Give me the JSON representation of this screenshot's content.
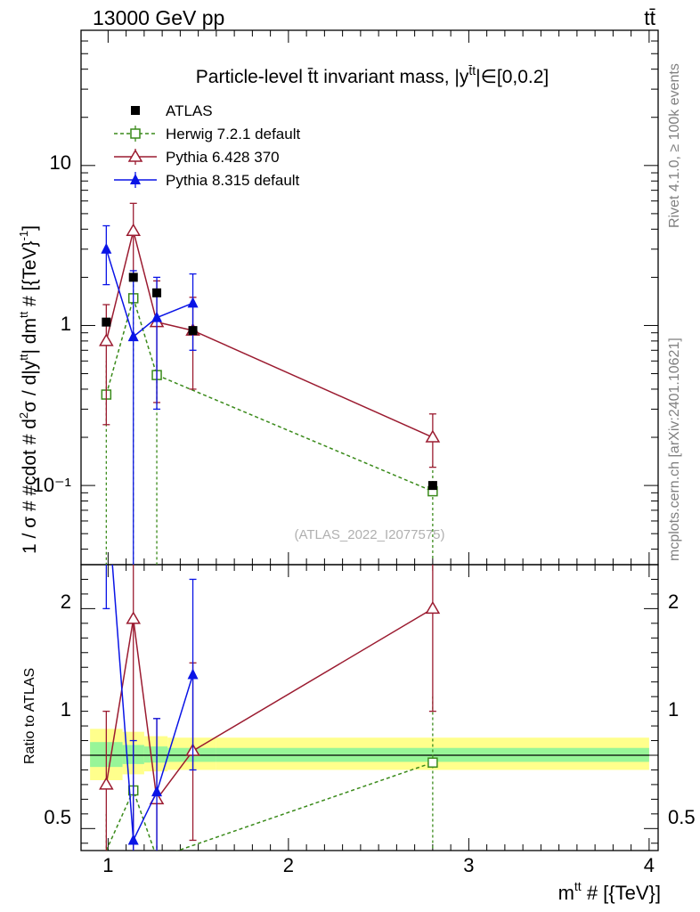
{
  "header": {
    "left": "13000 GeV pp",
    "right": "tt̄"
  },
  "side_labels": {
    "rivet": "Rivet 4.1.0, ≥ 100k events",
    "mcplots": "mcplots.cern.ch [arXiv:2401.10621]"
  },
  "chart_data": [
    {
      "type": "line",
      "panel": "main",
      "title": "Particle-level t̄t invariant mass, |y^tt|∈[0,0.2]",
      "title_main": "Particle-level t̄t invariant mass, |y",
      "title_sup": "t̄t",
      "title_end": "|∈[0,0.2]",
      "ylabel": "1 / σ # #cdot # d²σ / d|y^tt| dm^tt # [{TeV}⁻¹]",
      "ylabel_parts": [
        "1 / σ # #cdot # d",
        "2",
        "σ / d|y",
        "tt",
        "| dm",
        "tt",
        " # [{TeV}",
        "-1",
        "]"
      ],
      "yscale": "log",
      "xlim": [
        0.85,
        4.05
      ],
      "ylim": [
        0.032,
        70
      ],
      "yticks": [
        {
          "value": 10,
          "label": "10"
        },
        {
          "value": 1,
          "label": "1"
        },
        {
          "value": 0.1,
          "label": "10⁻¹"
        }
      ],
      "watermark": "(ATLAS_2022_I2077575)",
      "series": [
        {
          "name": "ATLAS",
          "color": "#000000",
          "marker": "square-filled",
          "dashed": false,
          "connect": false,
          "x": [
            0.99,
            1.14,
            1.27,
            1.47,
            2.8
          ],
          "y": [
            1.05,
            2.0,
            1.6,
            0.93,
            0.1
          ],
          "yerr_lo": [
            1.05,
            2.0,
            1.6,
            0.93,
            0.1
          ],
          "yerr_hi": [
            1.05,
            2.0,
            1.6,
            0.93,
            0.1
          ]
        },
        {
          "name": "Herwig 7.2.1 default",
          "color": "#3a8a1a",
          "marker": "square-open",
          "dashed": true,
          "connect": true,
          "x": [
            0.99,
            1.14,
            1.27,
            2.8
          ],
          "y": [
            0.37,
            1.48,
            0.49,
            0.092
          ],
          "yerr_lo": [
            0.01,
            0.001,
            0.001,
            0.035
          ],
          "yerr_hi": [
            0.6,
            2.2,
            0.6,
            0.14
          ]
        },
        {
          "name": "Pythia 6.428 370",
          "color": "#9b1b30",
          "marker": "triangle-open",
          "dashed": false,
          "connect": true,
          "x": [
            0.99,
            1.14,
            1.27,
            1.47,
            2.8
          ],
          "y": [
            0.8,
            3.9,
            1.05,
            0.93,
            0.2
          ],
          "yerr_lo": [
            0.24,
            2.0,
            0.33,
            0.4,
            0.13
          ],
          "yerr_hi": [
            1.35,
            5.8,
            1.9,
            1.5,
            0.28
          ]
        },
        {
          "name": "Pythia 8.315 default",
          "color": "#0a14e6",
          "marker": "triangle-filled",
          "dashed": false,
          "connect": true,
          "x": [
            0.99,
            1.14,
            1.27,
            1.47
          ],
          "y": [
            3.0,
            0.85,
            1.12,
            1.38
          ],
          "yerr_lo": [
            1.8,
            0.001,
            0.3,
            0.7
          ],
          "yerr_hi": [
            4.2,
            2.2,
            2.0,
            2.1
          ]
        }
      ]
    },
    {
      "type": "line",
      "panel": "ratio",
      "ylabel": "Ratio to ATLAS",
      "xlabel": "m^tt # [{TeV}]",
      "xlabel_parts": [
        "m",
        "tt",
        " # [{TeV}]"
      ],
      "xlim": [
        0.85,
        4.05
      ],
      "ylim": [
        0.35,
        2.3
      ],
      "xticks": [
        {
          "value": 1,
          "label": "1"
        },
        {
          "value": 2,
          "label": "2"
        },
        {
          "value": 3,
          "label": "3"
        },
        {
          "value": 4,
          "label": "4"
        }
      ],
      "yticks": [
        {
          "value": 2,
          "label": "2"
        },
        {
          "value": 1,
          "label": "1"
        },
        {
          "value": 0.5,
          "label": "0.5"
        }
      ],
      "bands": [
        {
          "x0": 0.9,
          "x1": 1.08,
          "yellow": [
            0.83,
            1.18
          ],
          "green": [
            0.92,
            1.09
          ]
        },
        {
          "x0": 1.08,
          "x1": 1.2,
          "yellow": [
            0.87,
            1.16
          ],
          "green": [
            0.94,
            1.07
          ]
        },
        {
          "x0": 1.2,
          "x1": 1.33,
          "yellow": [
            0.89,
            1.13
          ],
          "green": [
            0.95,
            1.06
          ]
        },
        {
          "x0": 1.33,
          "x1": 1.6,
          "yellow": [
            0.9,
            1.12
          ],
          "green": [
            0.955,
            1.05
          ]
        },
        {
          "x0": 1.6,
          "x1": 4.0,
          "yellow": [
            0.9,
            1.12
          ],
          "green": [
            0.955,
            1.05
          ]
        }
      ],
      "series": [
        {
          "name": "Herwig 7.2.1 default",
          "color": "#3a8a1a",
          "marker": "square-open",
          "dashed": true,
          "x": [
            0.99,
            1.14,
            1.27,
            2.8
          ],
          "y": [
            0.35,
            0.76,
            0.3,
            0.95
          ],
          "show": [
            false,
            true,
            false,
            true
          ],
          "yerr_lo": [
            0.001,
            0.001,
            0.001,
            0.001
          ],
          "yerr_hi": [
            0.6,
            1.1,
            0.4,
            1.4
          ]
        },
        {
          "name": "Pythia 6.428 370",
          "color": "#9b1b30",
          "marker": "triangle-open",
          "dashed": false,
          "x": [
            0.99,
            1.14,
            1.27,
            1.47,
            2.8
          ],
          "y": [
            0.8,
            1.93,
            0.7,
            1.03,
            2.0
          ],
          "show": [
            true,
            true,
            true,
            true,
            true
          ],
          "yerr_lo": [
            0.001,
            0.001,
            0.001,
            0.42,
            1.3
          ],
          "yerr_hi": [
            1.3,
            2.9,
            1.25,
            1.63,
            2.8
          ]
        },
        {
          "name": "Pythia 8.315 default",
          "color": "#0a14e6",
          "marker": "triangle-filled",
          "dashed": false,
          "x": [
            0.99,
            1.14,
            1.27,
            1.47
          ],
          "y": [
            2.85,
            0.42,
            0.75,
            1.55
          ],
          "show": [
            false,
            true,
            true,
            true
          ],
          "yerr_lo": [
            2.0,
            0.001,
            0.28,
            0.9
          ],
          "yerr_hi": [
            3.6,
            1.1,
            1.25,
            2.2
          ]
        }
      ]
    }
  ]
}
